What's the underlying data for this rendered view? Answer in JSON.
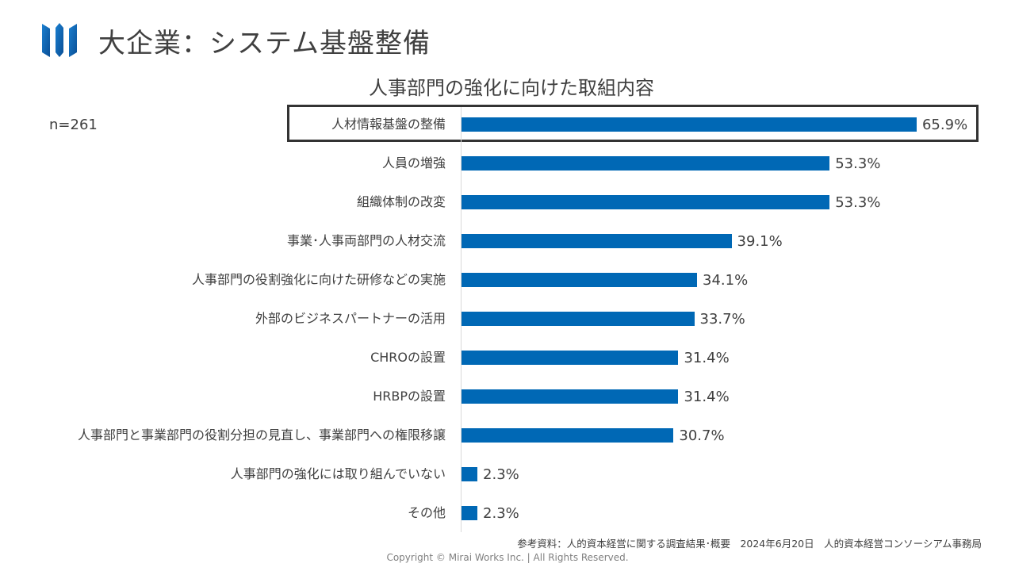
{
  "header": {
    "logo_icon": "company-logo-three-blue-pillars",
    "title": "大企業：システム基盤整備",
    "brand_color": "#0068b5"
  },
  "sample_size": "n=261",
  "highlight": {
    "category_index": 0,
    "border_color": "#333333"
  },
  "chart_data": {
    "type": "bar",
    "orientation": "horizontal",
    "title": "人事部門の強化に向けた取組内容",
    "xlabel": "",
    "ylabel": "",
    "xlim": [
      0,
      100
    ],
    "grid": false,
    "unit": "%",
    "bar_color": "#0068b5",
    "categories": [
      "人材情報基盤の整備",
      "人員の増強",
      "組織体制の改変",
      "事業･人事両部門の人材交流",
      "人事部門の役割強化に向けた研修などの実施",
      "外部のビジネスパートナーの活用",
      "CHROの設置",
      "HRBPの設置",
      "人事部門と事業部門の役割分担の見直し、事業部門への権限移譲",
      "人事部門の強化には取り組んでいない",
      "その他"
    ],
    "values": [
      65.9,
      53.3,
      53.3,
      39.1,
      34.1,
      33.7,
      31.4,
      31.4,
      30.7,
      2.3,
      2.3
    ],
    "value_labels": [
      "65.9%",
      "53.3%",
      "53.3%",
      "39.1%",
      "34.1%",
      "33.7%",
      "31.4%",
      "31.4%",
      "30.7%",
      "2.3%",
      "2.3%"
    ]
  },
  "footer": {
    "source": "参考資料：人的資本経営に関する調査結果･概要　2024年6月20日　人的資本経営コンソーシアム事務局",
    "copyright": "Copyright © Mirai Works Inc.  |  All Rights Reserved."
  }
}
